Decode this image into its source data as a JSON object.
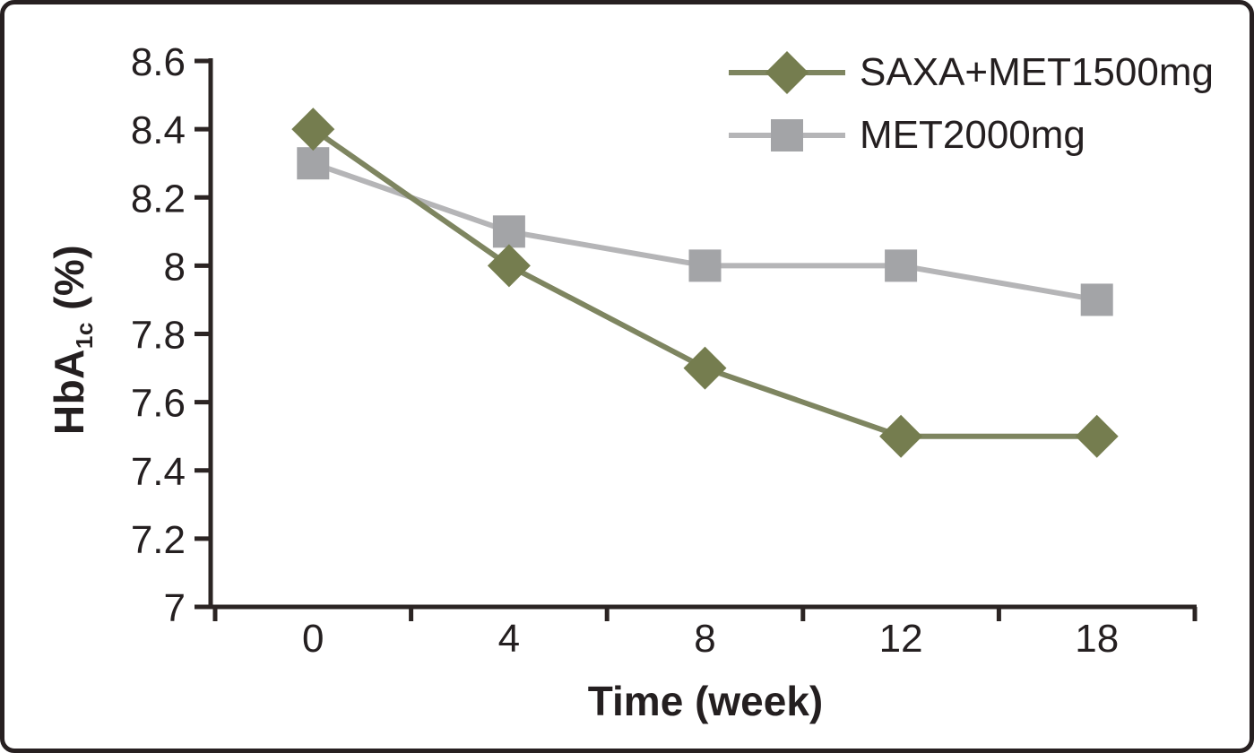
{
  "figure": {
    "background_color": "#ffffff",
    "border_color": "#272021",
    "text_color": "#241f20",
    "axis_color": "#2b2423"
  },
  "chart_data": {
    "type": "line",
    "title": "",
    "xlabel": "Time (week)",
    "ylabel": "HbA1c (%)",
    "ylabel_parts": {
      "base": "HbA",
      "subscript": "1c",
      "suffix": " (%)"
    },
    "categories": [
      "0",
      "4",
      "8",
      "12",
      "18"
    ],
    "ylim": [
      7.0,
      8.6
    ],
    "ytick_step": 0.2,
    "ytick_labels": [
      "7",
      "7.2",
      "7.4",
      "7.6",
      "7.8",
      "8",
      "8.2",
      "8.4",
      "8.6"
    ],
    "grid": false,
    "legend_position": "top-right-inside",
    "series": [
      {
        "name": "SAXA+MET1500mg",
        "marker": "diamond",
        "marker_color": "#757d4f",
        "line_color": "#7e8560",
        "values": [
          8.4,
          8.0,
          7.7,
          7.5,
          7.5
        ]
      },
      {
        "name": "MET2000mg",
        "marker": "square",
        "marker_color": "#a3a4a7",
        "line_color": "#b5b5b7",
        "values": [
          8.3,
          8.1,
          8.0,
          8.0,
          7.9
        ]
      }
    ]
  }
}
